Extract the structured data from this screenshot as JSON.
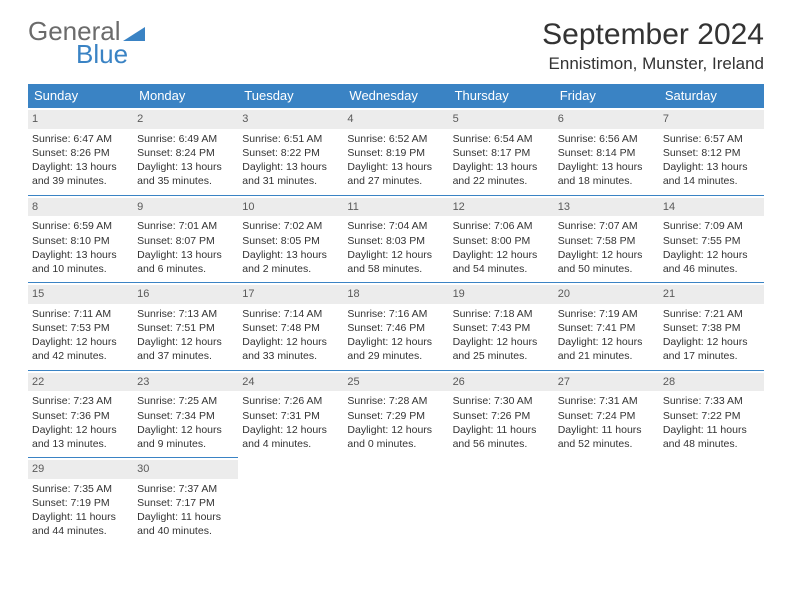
{
  "logo": {
    "text1": "General",
    "text2": "Blue"
  },
  "title": "September 2024",
  "location": "Ennistimon, Munster, Ireland",
  "colors": {
    "header_bg": "#3a83c4",
    "header_text": "#ffffff",
    "daynum_bg": "#ececec",
    "daynum_text": "#5a5a5a",
    "body_text": "#333333",
    "border": "#3a83c4",
    "page_bg": "#ffffff"
  },
  "weekdays": [
    "Sunday",
    "Monday",
    "Tuesday",
    "Wednesday",
    "Thursday",
    "Friday",
    "Saturday"
  ],
  "days": [
    {
      "n": "1",
      "sr": "Sunrise: 6:47 AM",
      "ss": "Sunset: 8:26 PM",
      "d1": "Daylight: 13 hours",
      "d2": "and 39 minutes."
    },
    {
      "n": "2",
      "sr": "Sunrise: 6:49 AM",
      "ss": "Sunset: 8:24 PM",
      "d1": "Daylight: 13 hours",
      "d2": "and 35 minutes."
    },
    {
      "n": "3",
      "sr": "Sunrise: 6:51 AM",
      "ss": "Sunset: 8:22 PM",
      "d1": "Daylight: 13 hours",
      "d2": "and 31 minutes."
    },
    {
      "n": "4",
      "sr": "Sunrise: 6:52 AM",
      "ss": "Sunset: 8:19 PM",
      "d1": "Daylight: 13 hours",
      "d2": "and 27 minutes."
    },
    {
      "n": "5",
      "sr": "Sunrise: 6:54 AM",
      "ss": "Sunset: 8:17 PM",
      "d1": "Daylight: 13 hours",
      "d2": "and 22 minutes."
    },
    {
      "n": "6",
      "sr": "Sunrise: 6:56 AM",
      "ss": "Sunset: 8:14 PM",
      "d1": "Daylight: 13 hours",
      "d2": "and 18 minutes."
    },
    {
      "n": "7",
      "sr": "Sunrise: 6:57 AM",
      "ss": "Sunset: 8:12 PM",
      "d1": "Daylight: 13 hours",
      "d2": "and 14 minutes."
    },
    {
      "n": "8",
      "sr": "Sunrise: 6:59 AM",
      "ss": "Sunset: 8:10 PM",
      "d1": "Daylight: 13 hours",
      "d2": "and 10 minutes."
    },
    {
      "n": "9",
      "sr": "Sunrise: 7:01 AM",
      "ss": "Sunset: 8:07 PM",
      "d1": "Daylight: 13 hours",
      "d2": "and 6 minutes."
    },
    {
      "n": "10",
      "sr": "Sunrise: 7:02 AM",
      "ss": "Sunset: 8:05 PM",
      "d1": "Daylight: 13 hours",
      "d2": "and 2 minutes."
    },
    {
      "n": "11",
      "sr": "Sunrise: 7:04 AM",
      "ss": "Sunset: 8:03 PM",
      "d1": "Daylight: 12 hours",
      "d2": "and 58 minutes."
    },
    {
      "n": "12",
      "sr": "Sunrise: 7:06 AM",
      "ss": "Sunset: 8:00 PM",
      "d1": "Daylight: 12 hours",
      "d2": "and 54 minutes."
    },
    {
      "n": "13",
      "sr": "Sunrise: 7:07 AM",
      "ss": "Sunset: 7:58 PM",
      "d1": "Daylight: 12 hours",
      "d2": "and 50 minutes."
    },
    {
      "n": "14",
      "sr": "Sunrise: 7:09 AM",
      "ss": "Sunset: 7:55 PM",
      "d1": "Daylight: 12 hours",
      "d2": "and 46 minutes."
    },
    {
      "n": "15",
      "sr": "Sunrise: 7:11 AM",
      "ss": "Sunset: 7:53 PM",
      "d1": "Daylight: 12 hours",
      "d2": "and 42 minutes."
    },
    {
      "n": "16",
      "sr": "Sunrise: 7:13 AM",
      "ss": "Sunset: 7:51 PM",
      "d1": "Daylight: 12 hours",
      "d2": "and 37 minutes."
    },
    {
      "n": "17",
      "sr": "Sunrise: 7:14 AM",
      "ss": "Sunset: 7:48 PM",
      "d1": "Daylight: 12 hours",
      "d2": "and 33 minutes."
    },
    {
      "n": "18",
      "sr": "Sunrise: 7:16 AM",
      "ss": "Sunset: 7:46 PM",
      "d1": "Daylight: 12 hours",
      "d2": "and 29 minutes."
    },
    {
      "n": "19",
      "sr": "Sunrise: 7:18 AM",
      "ss": "Sunset: 7:43 PM",
      "d1": "Daylight: 12 hours",
      "d2": "and 25 minutes."
    },
    {
      "n": "20",
      "sr": "Sunrise: 7:19 AM",
      "ss": "Sunset: 7:41 PM",
      "d1": "Daylight: 12 hours",
      "d2": "and 21 minutes."
    },
    {
      "n": "21",
      "sr": "Sunrise: 7:21 AM",
      "ss": "Sunset: 7:38 PM",
      "d1": "Daylight: 12 hours",
      "d2": "and 17 minutes."
    },
    {
      "n": "22",
      "sr": "Sunrise: 7:23 AM",
      "ss": "Sunset: 7:36 PM",
      "d1": "Daylight: 12 hours",
      "d2": "and 13 minutes."
    },
    {
      "n": "23",
      "sr": "Sunrise: 7:25 AM",
      "ss": "Sunset: 7:34 PM",
      "d1": "Daylight: 12 hours",
      "d2": "and 9 minutes."
    },
    {
      "n": "24",
      "sr": "Sunrise: 7:26 AM",
      "ss": "Sunset: 7:31 PM",
      "d1": "Daylight: 12 hours",
      "d2": "and 4 minutes."
    },
    {
      "n": "25",
      "sr": "Sunrise: 7:28 AM",
      "ss": "Sunset: 7:29 PM",
      "d1": "Daylight: 12 hours",
      "d2": "and 0 minutes."
    },
    {
      "n": "26",
      "sr": "Sunrise: 7:30 AM",
      "ss": "Sunset: 7:26 PM",
      "d1": "Daylight: 11 hours",
      "d2": "and 56 minutes."
    },
    {
      "n": "27",
      "sr": "Sunrise: 7:31 AM",
      "ss": "Sunset: 7:24 PM",
      "d1": "Daylight: 11 hours",
      "d2": "and 52 minutes."
    },
    {
      "n": "28",
      "sr": "Sunrise: 7:33 AM",
      "ss": "Sunset: 7:22 PM",
      "d1": "Daylight: 11 hours",
      "d2": "and 48 minutes."
    },
    {
      "n": "29",
      "sr": "Sunrise: 7:35 AM",
      "ss": "Sunset: 7:19 PM",
      "d1": "Daylight: 11 hours",
      "d2": "and 44 minutes."
    },
    {
      "n": "30",
      "sr": "Sunrise: 7:37 AM",
      "ss": "Sunset: 7:17 PM",
      "d1": "Daylight: 11 hours",
      "d2": "and 40 minutes."
    }
  ]
}
